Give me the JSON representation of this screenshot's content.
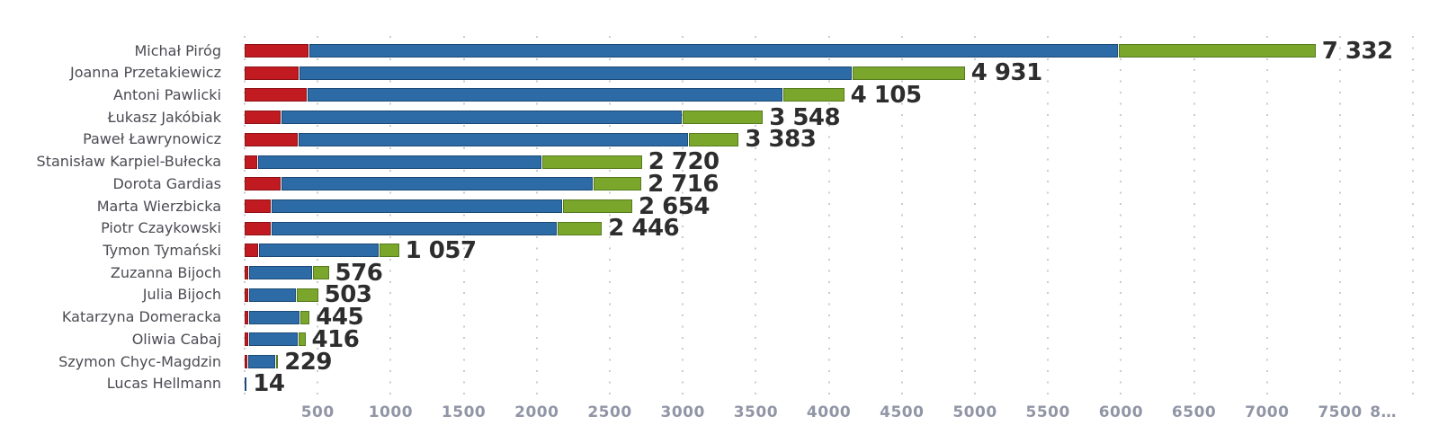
{
  "chart_data": {
    "type": "bar",
    "orientation": "horizontal",
    "stacked": true,
    "title": "",
    "xlabel": "",
    "ylabel": "",
    "categories": [
      "Michał Piróg",
      "Joanna Przetakiewicz",
      "Antoni Pawlicki",
      "Łukasz Jakóbiak",
      "Paweł Ławrynowicz",
      "Stanisław Karpiel-Bułecka",
      "Dorota Gardias",
      "Marta Wierzbicka",
      "Piotr Czaykowski",
      "Tymon Tymański",
      "Zuzanna Bijoch",
      "Julia Bijoch",
      "Katarzyna Domeracka",
      "Oliwia Cabaj",
      "Szymon Chyc-Magdzin",
      "Lucas Hellmann"
    ],
    "series": [
      {
        "name": "red-segment",
        "color": "#c11b21",
        "border_color": "#8c1216",
        "values": [
          435,
          367,
          424,
          247,
          363,
          88,
          247,
          179,
          176,
          92,
          25,
          25,
          25,
          25,
          18,
          0
        ]
      },
      {
        "name": "blue-segment",
        "color": "#2c6ba5",
        "border_color": "#1c4a77",
        "values": [
          5543,
          3791,
          3259,
          2744,
          2673,
          1944,
          2136,
          1996,
          1958,
          826,
          434,
          326,
          353,
          336,
          190,
          14
        ]
      },
      {
        "name": "green-segment",
        "color": "#7aa62c",
        "border_color": "#567a1e",
        "values": [
          1354,
          773,
          422,
          557,
          347,
          688,
          333,
          479,
          312,
          139,
          117,
          152,
          67,
          55,
          21,
          0
        ]
      }
    ],
    "totals": [
      7332,
      4931,
      4105,
      3548,
      3383,
      2720,
      2716,
      2654,
      2446,
      1057,
      576,
      503,
      445,
      416,
      229,
      14
    ],
    "total_labels": [
      "7 332",
      "4 931",
      "4 105",
      "3 548",
      "3 383",
      "2 720",
      "2 716",
      "2 654",
      "2 446",
      "1 057",
      "576",
      "503",
      "445",
      "416",
      "229",
      "14"
    ],
    "x_axis": {
      "min": 0,
      "max": 8150,
      "tick_values": [
        500,
        1000,
        1500,
        2000,
        2500,
        3000,
        3500,
        4000,
        4500,
        5000,
        5500,
        6000,
        6500,
        7000,
        7500,
        8000
      ],
      "tick_labels": [
        "500",
        "1000",
        "1500",
        "2000",
        "2500",
        "3000",
        "3500",
        "4000",
        "4500",
        "5000",
        "5500",
        "6000",
        "6500",
        "7000",
        "7500",
        "8…"
      ],
      "gridline_values": [
        0,
        500,
        1000,
        1500,
        2000,
        2500,
        3000,
        3500,
        4000,
        4500,
        5000,
        5500,
        6000,
        6500,
        7000,
        7500,
        8000
      ]
    },
    "grid": {
      "style": "dotted-vertical",
      "color": "#cbcbcb"
    },
    "legend": "none",
    "colors": {
      "background": "#ffffff",
      "category_label": "#4b4b53",
      "value_label": "#2d2d2d",
      "axis_label": "#9196a6"
    }
  }
}
